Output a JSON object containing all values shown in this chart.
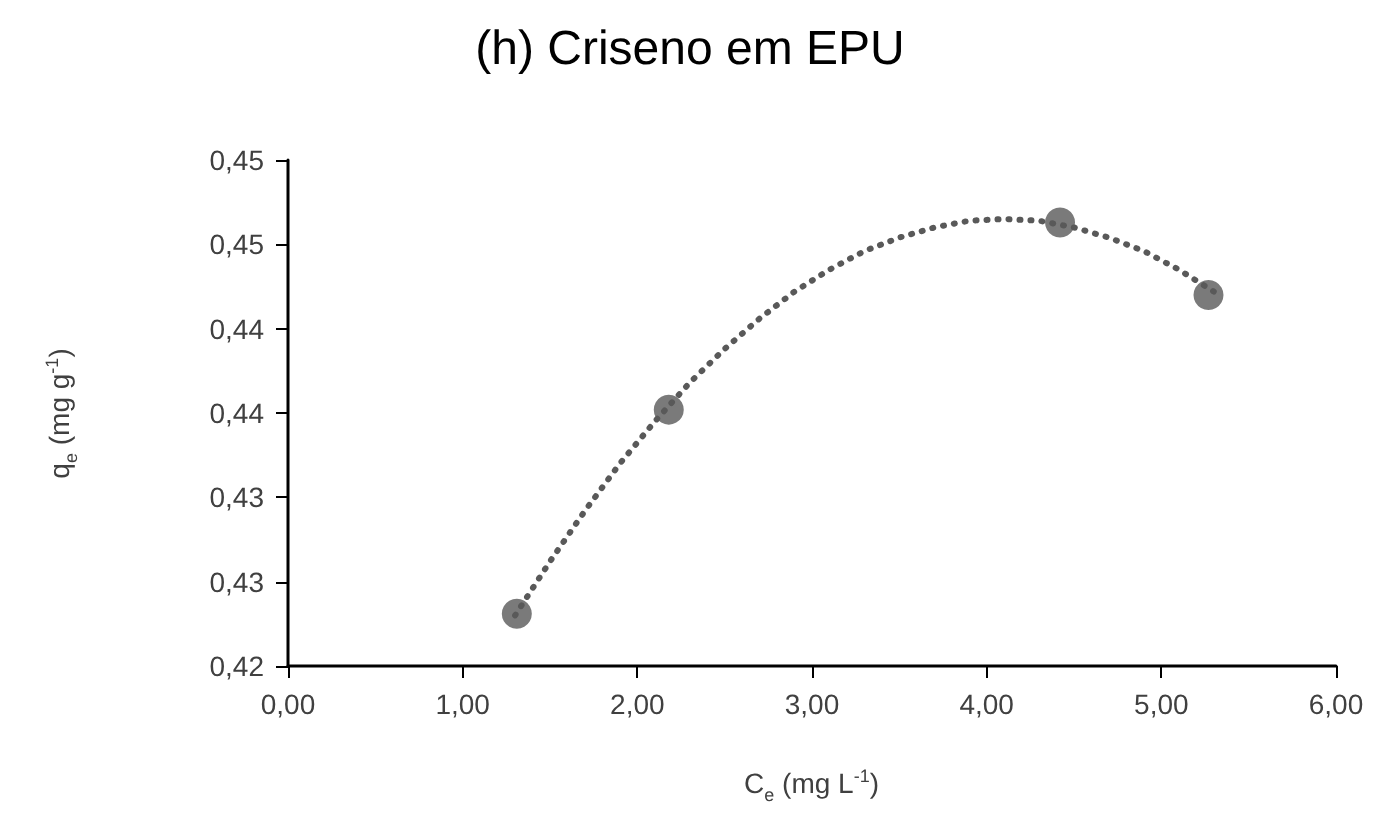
{
  "chart_data": {
    "type": "scatter",
    "title": "(h) Criseno em EPU",
    "xlabel": "C$_{e}$ (mg L$^{-1}$)",
    "ylabel": "q$_{e}$ (mg g$^{-1}$)",
    "x": [
      1.31,
      2.18,
      4.42,
      5.27
    ],
    "series": [
      {
        "color": "#595959",
        "marker": "circle",
        "values": [
          0.4231,
          0.4352,
          0.4463,
          0.442
        ]
      },
      {
        "type": "line",
        "color": "#595959",
        "marker": "none",
        "line_style": "dotted",
        "x": [
          1.3,
          1.5,
          1.7,
          1.9,
          2.1,
          2.3,
          2.5,
          2.7,
          2.9,
          3.1,
          3.3,
          3.5,
          3.7,
          3.9,
          4.1,
          4.3,
          4.5,
          4.7,
          4.9,
          5.1,
          5.3
        ],
        "values": [
          0.423,
          0.4262,
          0.4292,
          0.432,
          0.4345,
          0.4368,
          0.4388,
          0.4406,
          0.4422,
          0.4435,
          0.4446,
          0.4454,
          0.446,
          0.4464,
          0.4465,
          0.4464,
          0.446,
          0.4454,
          0.4446,
          0.4435,
          0.4422
        ]
      }
    ],
    "xlim": [
      0,
      6
    ],
    "xticks": [
      {
        "value": 0,
        "label": "0,00"
      },
      {
        "value": 1,
        "label": "1,00"
      },
      {
        "value": 2,
        "label": "2,00"
      },
      {
        "value": 3,
        "label": "3,00"
      },
      {
        "value": 4,
        "label": "4,00"
      },
      {
        "value": 5,
        "label": "5,00"
      },
      {
        "value": 6,
        "label": "6,00"
      }
    ],
    "ylim": [
      0.42,
      0.45
    ],
    "yticks": [
      {
        "value": 0.42,
        "label": "0,42"
      },
      {
        "value": 0.425,
        "label": "0,43"
      },
      {
        "value": 0.43,
        "label": "0,43"
      },
      {
        "value": 0.435,
        "label": "0,44"
      },
      {
        "value": 0.44,
        "label": "0,44"
      },
      {
        "value": 0.445,
        "label": "0,45"
      },
      {
        "value": 0.45,
        "label": "0,45"
      }
    ],
    "grid": false
  }
}
